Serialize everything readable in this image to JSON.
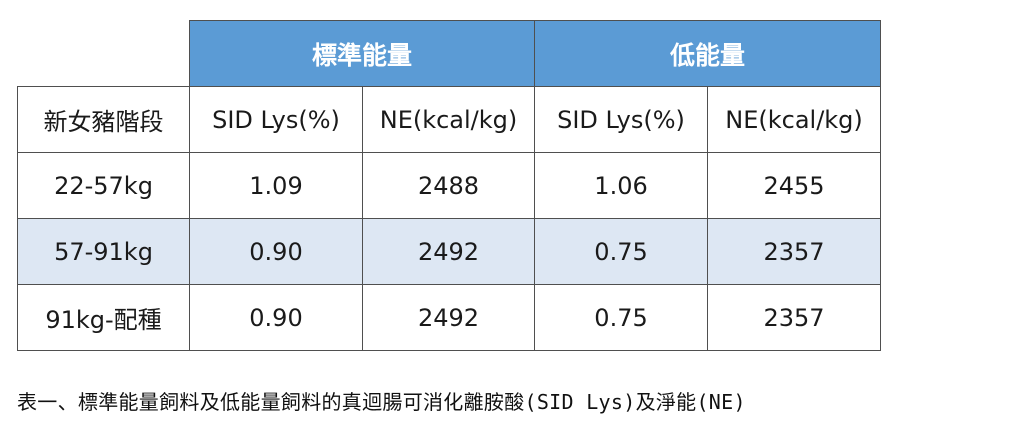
{
  "table": {
    "groups": [
      "標準能量",
      "低能量"
    ],
    "row_header": "新女豬階段",
    "subheaders": [
      "SID Lys(%)",
      "NE(kcal/kg)",
      "SID Lys(%)",
      "NE(kcal/kg)"
    ],
    "rows": [
      {
        "stage": "22-57kg",
        "values": [
          "1.09",
          "2488",
          "1.06",
          "2455"
        ]
      },
      {
        "stage": "57-91kg",
        "values": [
          "0.90",
          "2492",
          "0.75",
          "2357"
        ]
      },
      {
        "stage": "91kg-配種",
        "values": [
          "0.90",
          "2492",
          "0.75",
          "2357"
        ]
      }
    ]
  },
  "caption": "表一、標準能量飼料及低能量飼料的真迴腸可消化離胺酸(SID Lys)及淨能(NE)",
  "colors": {
    "header_bg": "#5b9bd5",
    "shaded_row_bg": "#dde7f3",
    "border": "#4f4f4f"
  }
}
